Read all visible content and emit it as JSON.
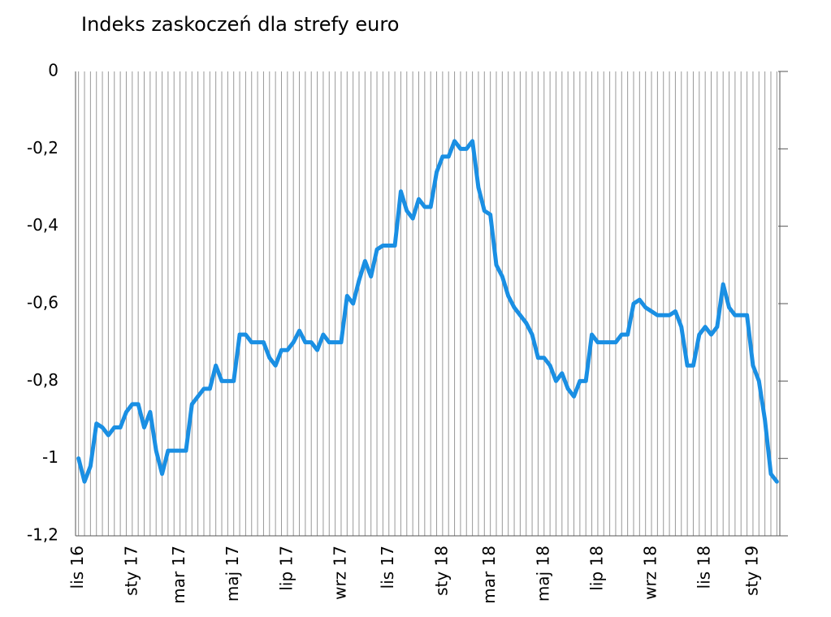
{
  "chart_data": {
    "type": "line",
    "title": "Indeks zaskoczeń dla strefy euro",
    "categories": [
      "lis 16",
      null,
      null,
      null,
      null,
      null,
      null,
      null,
      null,
      "sty 17",
      null,
      null,
      null,
      null,
      null,
      null,
      null,
      "mar 17",
      null,
      null,
      null,
      null,
      null,
      null,
      null,
      null,
      "maj 17",
      null,
      null,
      null,
      null,
      null,
      null,
      null,
      null,
      "lip 17",
      null,
      null,
      null,
      null,
      null,
      null,
      null,
      null,
      "wrz 17",
      null,
      null,
      null,
      null,
      null,
      null,
      null,
      "lis 17",
      null,
      null,
      null,
      null,
      null,
      null,
      null,
      null,
      "sty 18",
      null,
      null,
      null,
      null,
      null,
      null,
      null,
      "mar 18",
      null,
      null,
      null,
      null,
      null,
      null,
      null,
      null,
      "maj 18",
      null,
      null,
      null,
      null,
      null,
      null,
      null,
      null,
      "lip 18",
      null,
      null,
      null,
      null,
      null,
      null,
      null,
      null,
      "wrz 18",
      null,
      null,
      null,
      null,
      null,
      null,
      null,
      null,
      "lis 18",
      null,
      null,
      null,
      null,
      null,
      null,
      null,
      "sty 19",
      null,
      null,
      null,
      null
    ],
    "values": [
      -1.0,
      -1.06,
      -1.02,
      -0.91,
      -0.92,
      -0.94,
      -0.92,
      -0.92,
      -0.88,
      -0.86,
      -0.86,
      -0.92,
      -0.88,
      -0.98,
      -1.04,
      -0.98,
      -0.98,
      -0.98,
      -0.98,
      -0.86,
      -0.84,
      -0.82,
      -0.82,
      -0.76,
      -0.8,
      -0.8,
      -0.8,
      -0.68,
      -0.68,
      -0.7,
      -0.7,
      -0.7,
      -0.74,
      -0.76,
      -0.72,
      -0.72,
      -0.7,
      -0.67,
      -0.7,
      -0.7,
      -0.72,
      -0.68,
      -0.7,
      -0.7,
      -0.7,
      -0.58,
      -0.6,
      -0.54,
      -0.49,
      -0.53,
      -0.46,
      -0.45,
      -0.45,
      -0.45,
      -0.31,
      -0.36,
      -0.38,
      -0.33,
      -0.35,
      -0.35,
      -0.26,
      -0.22,
      -0.22,
      -0.18,
      -0.2,
      -0.2,
      -0.18,
      -0.3,
      -0.36,
      -0.37,
      -0.5,
      -0.53,
      -0.58,
      -0.61,
      -0.63,
      -0.65,
      -0.68,
      -0.74,
      -0.74,
      -0.76,
      -0.8,
      -0.78,
      -0.82,
      -0.84,
      -0.8,
      -0.8,
      -0.68,
      -0.7,
      -0.7,
      -0.7,
      -0.7,
      -0.68,
      -0.68,
      -0.6,
      -0.59,
      -0.61,
      -0.62,
      -0.63,
      -0.63,
      -0.63,
      -0.62,
      -0.66,
      -0.76,
      -0.76,
      -0.68,
      -0.66,
      -0.68,
      -0.66,
      -0.55,
      -0.61,
      -0.63,
      -0.63,
      -0.63,
      -0.76,
      -0.8,
      -0.9,
      -1.04,
      -1.06
    ],
    "color": "#1a8fe3",
    "ylim": [
      -1.2,
      0
    ],
    "yticks": [
      0,
      {
        "value": -0.2,
        "label": "-0,2"
      },
      {
        "value": -0.4,
        "label": "-0,4"
      },
      {
        "value": -0.6,
        "label": "-0,6"
      },
      {
        "value": -0.8,
        "label": "-0,8"
      },
      -1,
      {
        "value": -1.2,
        "label": "-1,2"
      }
    ],
    "grid": true
  }
}
